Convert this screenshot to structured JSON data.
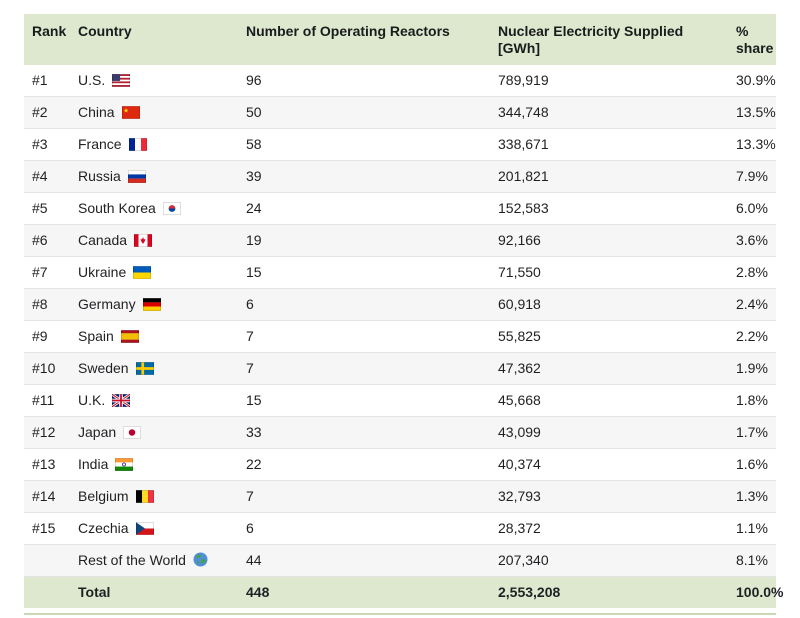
{
  "colors": {
    "header_bg": "#dde8cf",
    "total_bg": "#dde8cf",
    "row_stripe": "#f6f6f6",
    "row_border": "#e4e4e4",
    "text": "#1f2023",
    "bottom_rule": "#c9d9b2"
  },
  "table": {
    "columns": [
      {
        "label": "Rank"
      },
      {
        "label": "Country"
      },
      {
        "label": "Number of Operating Reactors"
      },
      {
        "label": "Nuclear Electricity Supplied",
        "label2": "[GWh]"
      },
      {
        "label": "%",
        "label2": "share"
      }
    ],
    "rows": [
      {
        "rank": "#1",
        "country": "U.S.",
        "flag": "us",
        "reactors": "96",
        "gwh": "789,919",
        "share": "30.9%"
      },
      {
        "rank": "#2",
        "country": "China",
        "flag": "china",
        "reactors": "50",
        "gwh": "344,748",
        "share": "13.5%"
      },
      {
        "rank": "#3",
        "country": "France",
        "flag": "france",
        "reactors": "58",
        "gwh": "338,671",
        "share": "13.3%"
      },
      {
        "rank": "#4",
        "country": "Russia",
        "flag": "russia",
        "reactors": "39",
        "gwh": "201,821",
        "share": "7.9%"
      },
      {
        "rank": "#5",
        "country": "South Korea",
        "flag": "korea",
        "reactors": "24",
        "gwh": "152,583",
        "share": "6.0%"
      },
      {
        "rank": "#6",
        "country": "Canada",
        "flag": "canada",
        "reactors": "19",
        "gwh": "92,166",
        "share": "3.6%"
      },
      {
        "rank": "#7",
        "country": "Ukraine",
        "flag": "ukraine",
        "reactors": "15",
        "gwh": "71,550",
        "share": "2.8%"
      },
      {
        "rank": "#8",
        "country": "Germany",
        "flag": "germany",
        "reactors": "6",
        "gwh": "60,918",
        "share": "2.4%"
      },
      {
        "rank": "#9",
        "country": "Spain",
        "flag": "spain",
        "reactors": "7",
        "gwh": "55,825",
        "share": "2.2%"
      },
      {
        "rank": "#10",
        "country": "Sweden",
        "flag": "sweden",
        "reactors": "7",
        "gwh": "47,362",
        "share": "1.9%"
      },
      {
        "rank": "#11",
        "country": "U.K.",
        "flag": "uk",
        "reactors": "15",
        "gwh": "45,668",
        "share": "1.8%"
      },
      {
        "rank": "#12",
        "country": "Japan",
        "flag": "japan",
        "reactors": "33",
        "gwh": "43,099",
        "share": "1.7%"
      },
      {
        "rank": "#13",
        "country": "India",
        "flag": "india",
        "reactors": "22",
        "gwh": "40,374",
        "share": "1.6%"
      },
      {
        "rank": "#14",
        "country": "Belgium",
        "flag": "belgium",
        "reactors": "7",
        "gwh": "32,793",
        "share": "1.3%"
      },
      {
        "rank": "#15",
        "country": "Czechia",
        "flag": "czechia",
        "reactors": "6",
        "gwh": "28,372",
        "share": "1.1%"
      },
      {
        "rank": "",
        "country": "Rest of the World",
        "flag": "globe",
        "reactors": "44",
        "gwh": "207,340",
        "share": "8.1%"
      }
    ],
    "total": {
      "label": "Total",
      "reactors": "448",
      "gwh": "2,553,208",
      "share": "100.0%"
    }
  },
  "chart_data": {
    "type": "table",
    "columns": [
      "Rank",
      "Country",
      "Number of Operating Reactors",
      "Nuclear Electricity Supplied [GWh]",
      "% share"
    ],
    "rows": [
      [
        "#1",
        "U.S.",
        96,
        789919,
        30.9
      ],
      [
        "#2",
        "China",
        50,
        344748,
        13.5
      ],
      [
        "#3",
        "France",
        58,
        338671,
        13.3
      ],
      [
        "#4",
        "Russia",
        39,
        201821,
        7.9
      ],
      [
        "#5",
        "South Korea",
        24,
        152583,
        6.0
      ],
      [
        "#6",
        "Canada",
        19,
        92166,
        3.6
      ],
      [
        "#7",
        "Ukraine",
        15,
        71550,
        2.8
      ],
      [
        "#8",
        "Germany",
        6,
        60918,
        2.4
      ],
      [
        "#9",
        "Spain",
        7,
        55825,
        2.2
      ],
      [
        "#10",
        "Sweden",
        7,
        47362,
        1.9
      ],
      [
        "#11",
        "U.K.",
        15,
        45668,
        1.8
      ],
      [
        "#12",
        "Japan",
        33,
        43099,
        1.7
      ],
      [
        "#13",
        "India",
        22,
        40374,
        1.6
      ],
      [
        "#14",
        "Belgium",
        7,
        32793,
        1.3
      ],
      [
        "#15",
        "Czechia",
        6,
        28372,
        1.1
      ],
      [
        "",
        "Rest of the World",
        44,
        207340,
        8.1
      ]
    ],
    "total_row": [
      "",
      "Total",
      448,
      2553208,
      100.0
    ]
  }
}
